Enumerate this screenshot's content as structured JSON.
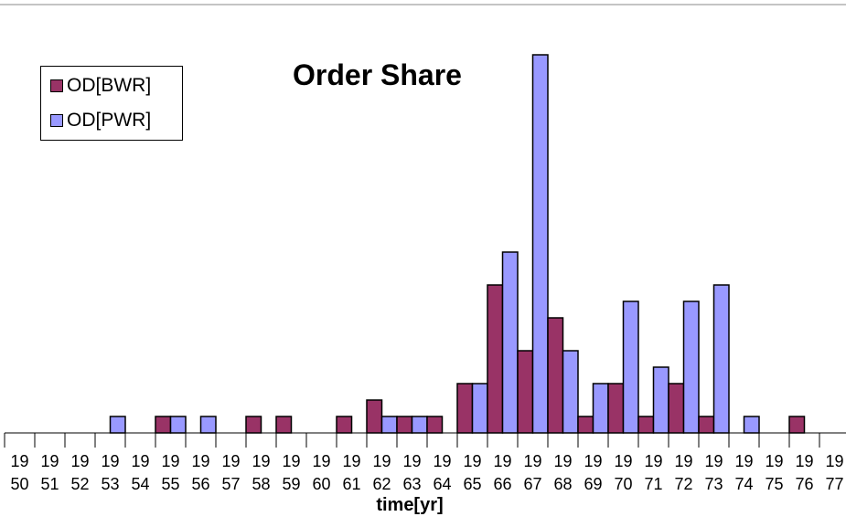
{
  "chart_data": {
    "type": "bar",
    "title": "Order Share",
    "x_label": "time[yr]",
    "categories": [
      "19\n50",
      "19\n51",
      "19\n52",
      "19\n53",
      "19\n54",
      "19\n55",
      "19\n56",
      "19\n57",
      "19\n58",
      "19\n59",
      "19\n60",
      "19\n61",
      "19\n62",
      "19\n63",
      "19\n64",
      "19\n65",
      "19\n66",
      "19\n67",
      "19\n68",
      "19\n69",
      "19\n70",
      "19\n71",
      "19\n72",
      "19\n73",
      "19\n74",
      "19\n75",
      "19\n76",
      "19\n77"
    ],
    "series": [
      {
        "name": "OD[BWR]",
        "color": "#993366",
        "values": [
          0,
          0,
          0,
          0,
          0,
          1,
          0,
          0,
          1,
          1,
          0,
          1,
          2,
          1,
          1,
          3,
          9,
          5,
          7,
          1,
          3,
          1,
          3,
          1,
          0,
          0,
          1,
          0
        ]
      },
      {
        "name": "OD[PWR]",
        "color": "#9999ff",
        "values": [
          0,
          0,
          0,
          1,
          0,
          1,
          1,
          0,
          0,
          0,
          0,
          0,
          1,
          1,
          0,
          3,
          11,
          23,
          5,
          3,
          8,
          4,
          8,
          9,
          1,
          0,
          0,
          0
        ]
      }
    ],
    "ylim": [
      0,
      25
    ],
    "legend": "top-left"
  }
}
